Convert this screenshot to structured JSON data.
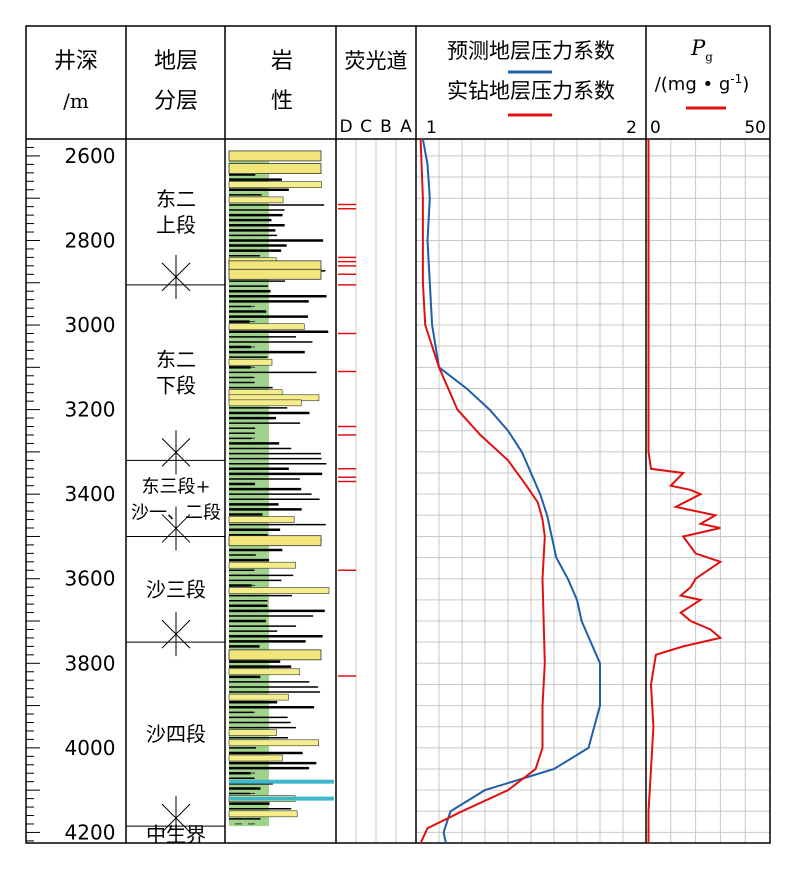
{
  "headers": {
    "depth": [
      "井深",
      "/m"
    ],
    "strata": [
      "地层",
      "分层"
    ],
    "lithology": [
      "岩",
      "性"
    ],
    "fluorescence": "荧光道",
    "fluor_levels": [
      "D",
      "C",
      "B",
      "A"
    ],
    "pressure_legend_1": "预测地层压力系数",
    "pressure_legend_2": "实钻地层压力系数",
    "pressure_min": "1",
    "pressure_max": "2",
    "pg_title": "P",
    "pg_sub": "g",
    "pg_unit": "/(mg • g",
    "pg_unit_exp": "-1",
    "pg_unit_close": ")",
    "pg_min": "0",
    "pg_max": "50"
  },
  "strata": [
    {
      "label": [
        "东二",
        "上段"
      ],
      "top": 2560,
      "bottom": 2905
    },
    {
      "label": [
        "东二",
        "下段"
      ],
      "top": 2905,
      "bottom": 3320
    },
    {
      "label": [
        "东三段+",
        "沙一、二段"
      ],
      "top": 3320,
      "bottom": 3500
    },
    {
      "label": [
        "沙三段"
      ],
      "top": 3500,
      "bottom": 3750
    },
    {
      "label": [
        "沙四段"
      ],
      "top": 3750,
      "bottom": 4185
    },
    {
      "label": [
        "中生界"
      ],
      "top": 4185,
      "bottom": 4225
    }
  ],
  "chart_data": {
    "type": "line",
    "y_axis": {
      "label": "井深/m",
      "range": [
        2560,
        4225
      ],
      "ticks": [
        2600,
        2800,
        3000,
        3200,
        3400,
        3600,
        3800,
        4000,
        4200
      ],
      "inverted": true
    },
    "pressure_track": {
      "xlim": [
        1,
        2
      ],
      "series": [
        {
          "name": "预测地层压力系数",
          "color": "#1f5fa8",
          "points": [
            [
              1.03,
              2560
            ],
            [
              1.05,
              2620
            ],
            [
              1.06,
              2700
            ],
            [
              1.05,
              2800
            ],
            [
              1.06,
              2900
            ],
            [
              1.07,
              3000
            ],
            [
              1.1,
              3100
            ],
            [
              1.22,
              3150
            ],
            [
              1.32,
              3200
            ],
            [
              1.4,
              3250
            ],
            [
              1.46,
              3300
            ],
            [
              1.5,
              3350
            ],
            [
              1.54,
              3400
            ],
            [
              1.57,
              3450
            ],
            [
              1.59,
              3500
            ],
            [
              1.61,
              3550
            ],
            [
              1.66,
              3600
            ],
            [
              1.7,
              3650
            ],
            [
              1.72,
              3700
            ],
            [
              1.76,
              3750
            ],
            [
              1.8,
              3800
            ],
            [
              1.8,
              3900
            ],
            [
              1.75,
              4000
            ],
            [
              1.6,
              4050
            ],
            [
              1.3,
              4100
            ],
            [
              1.15,
              4150
            ],
            [
              1.12,
              4200
            ],
            [
              1.13,
              4225
            ]
          ]
        },
        {
          "name": "实钻地层压力系数",
          "color": "#e01010",
          "points": [
            [
              1.02,
              2560
            ],
            [
              1.03,
              2700
            ],
            [
              1.03,
              2900
            ],
            [
              1.04,
              3000
            ],
            [
              1.1,
              3100
            ],
            [
              1.18,
              3200
            ],
            [
              1.28,
              3260
            ],
            [
              1.4,
              3320
            ],
            [
              1.48,
              3380
            ],
            [
              1.53,
              3420
            ],
            [
              1.55,
              3460
            ],
            [
              1.56,
              3500
            ],
            [
              1.55,
              3600
            ],
            [
              1.56,
              3800
            ],
            [
              1.55,
              3900
            ],
            [
              1.55,
              4000
            ],
            [
              1.52,
              4050
            ],
            [
              1.4,
              4100
            ],
            [
              1.2,
              4150
            ],
            [
              1.05,
              4190
            ],
            [
              1.02,
              4225
            ]
          ]
        }
      ]
    },
    "pg_track": {
      "xlim": [
        0,
        50
      ],
      "series": [
        {
          "name": "Pg",
          "color": "#e01010",
          "points": [
            [
              1,
              2560
            ],
            [
              1,
              3300
            ],
            [
              2,
              3340
            ],
            [
              15,
              3350
            ],
            [
              10,
              3380
            ],
            [
              18,
              3390
            ],
            [
              22,
              3400
            ],
            [
              12,
              3430
            ],
            [
              28,
              3450
            ],
            [
              22,
              3470
            ],
            [
              30,
              3480
            ],
            [
              15,
              3500
            ],
            [
              20,
              3540
            ],
            [
              30,
              3560
            ],
            [
              20,
              3600
            ],
            [
              18,
              3620
            ],
            [
              14,
              3640
            ],
            [
              22,
              3650
            ],
            [
              14,
              3680
            ],
            [
              18,
              3700
            ],
            [
              26,
              3720
            ],
            [
              30,
              3740
            ],
            [
              15,
              3760
            ],
            [
              4,
              3780
            ],
            [
              2,
              3850
            ],
            [
              3,
              3950
            ],
            [
              2,
              4050
            ],
            [
              1,
              4150
            ],
            [
              1,
              4225
            ]
          ]
        }
      ]
    },
    "fluorescence_shows": [
      2715,
      2725,
      2840,
      2850,
      2860,
      2880,
      2905,
      3020,
      3110,
      3240,
      3260,
      3340,
      3360,
      3370,
      3580,
      3830
    ]
  }
}
